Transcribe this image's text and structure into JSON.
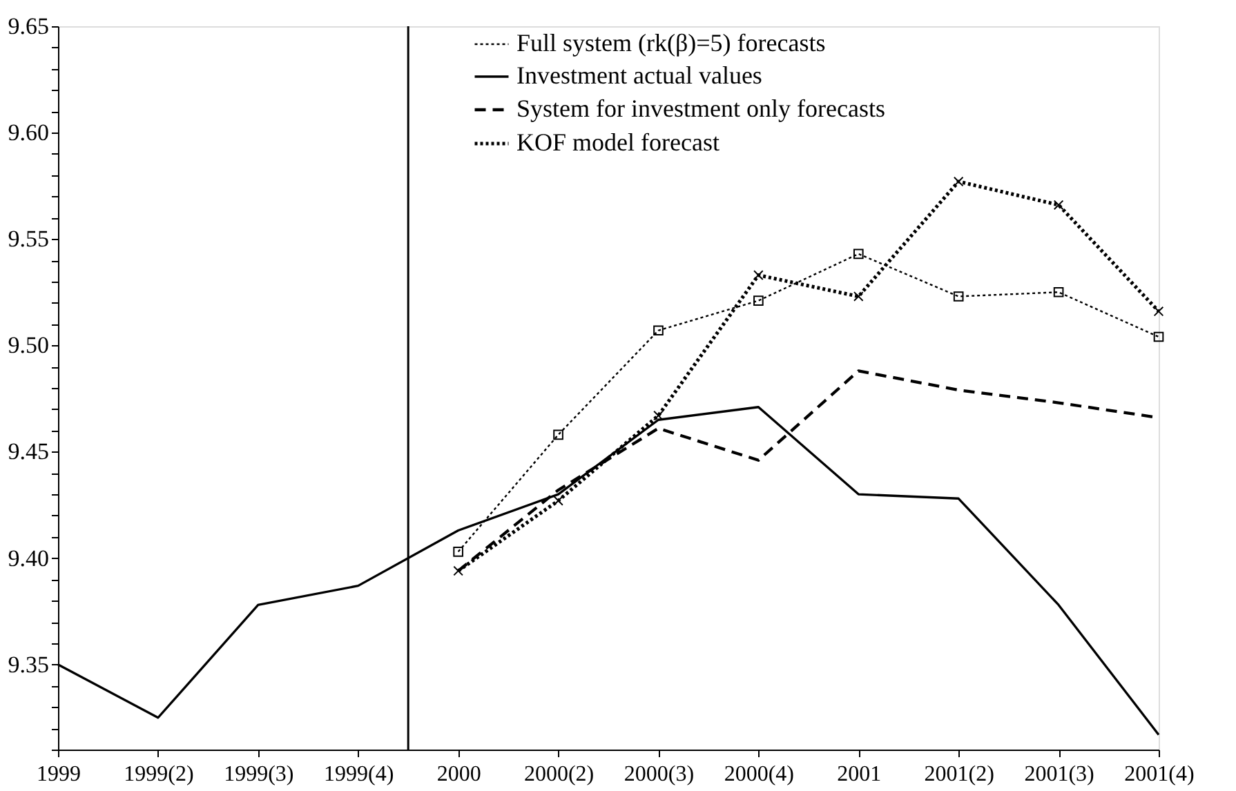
{
  "chart_data": {
    "type": "line",
    "categories": [
      "1999",
      "1999(2)",
      "1999(3)",
      "1999(4)",
      "2000",
      "2000(2)",
      "2000(3)",
      "2000(4)",
      "2001",
      "2001(2)",
      "2001(3)",
      "2001(4)"
    ],
    "ylim": [
      9.31,
      9.65
    ],
    "yticks": [
      {
        "value": 9.31,
        "label": null
      },
      {
        "value": 9.32,
        "label": null
      },
      {
        "value": 9.33,
        "label": null
      },
      {
        "value": 9.34,
        "label": null
      },
      {
        "value": 9.35,
        "label": "9.35"
      },
      {
        "value": 9.36,
        "label": null
      },
      {
        "value": 9.37,
        "label": null
      },
      {
        "value": 9.38,
        "label": null
      },
      {
        "value": 9.39,
        "label": null
      },
      {
        "value": 9.4,
        "label": "9.40"
      },
      {
        "value": 9.41,
        "label": null
      },
      {
        "value": 9.42,
        "label": null
      },
      {
        "value": 9.43,
        "label": null
      },
      {
        "value": 9.44,
        "label": null
      },
      {
        "value": 9.45,
        "label": "9.45"
      },
      {
        "value": 9.46,
        "label": null
      },
      {
        "value": 9.47,
        "label": null
      },
      {
        "value": 9.48,
        "label": null
      },
      {
        "value": 9.49,
        "label": null
      },
      {
        "value": 9.5,
        "label": "9.50"
      },
      {
        "value": 9.51,
        "label": null
      },
      {
        "value": 9.52,
        "label": null
      },
      {
        "value": 9.53,
        "label": null
      },
      {
        "value": 9.54,
        "label": null
      },
      {
        "value": 9.55,
        "label": "9.55"
      },
      {
        "value": 9.56,
        "label": null
      },
      {
        "value": 9.57,
        "label": null
      },
      {
        "value": 9.58,
        "label": null
      },
      {
        "value": 9.59,
        "label": null
      },
      {
        "value": 9.6,
        "label": "9.60"
      },
      {
        "value": 9.61,
        "label": null
      },
      {
        "value": 9.62,
        "label": null
      },
      {
        "value": 9.63,
        "label": null
      },
      {
        "value": 9.64,
        "label": null
      },
      {
        "value": 9.65,
        "label": "9.65"
      }
    ],
    "grid": false,
    "legend": "top right",
    "series": [
      {
        "name": "Full system (rk(β)=5) forecasts",
        "color": "#000000",
        "marker": "square",
        "line_style": "dotted",
        "values": [
          null,
          null,
          null,
          null,
          9.403,
          9.458,
          9.507,
          9.521,
          9.543,
          9.523,
          9.525,
          9.504
        ]
      },
      {
        "name": "Investment actual values",
        "color": "#000000",
        "marker": "none",
        "line_style": "solid",
        "values": [
          9.35,
          9.325,
          9.378,
          9.387,
          9.413,
          9.43,
          9.465,
          9.471,
          9.43,
          9.428,
          9.378,
          9.317
        ]
      },
      {
        "name": "System for investment only forecasts",
        "color": "#000000",
        "marker": "none",
        "line_style": "dashed",
        "values": [
          null,
          null,
          null,
          null,
          9.394,
          9.432,
          9.461,
          9.446,
          9.488,
          9.479,
          9.473,
          9.466
        ]
      },
      {
        "name": "KOF model forecast",
        "color": "#000000",
        "marker": "cross",
        "line_style": "dotted",
        "values": [
          null,
          null,
          null,
          null,
          9.394,
          9.427,
          9.467,
          9.533,
          9.523,
          9.577,
          9.566,
          9.516
        ]
      }
    ]
  }
}
